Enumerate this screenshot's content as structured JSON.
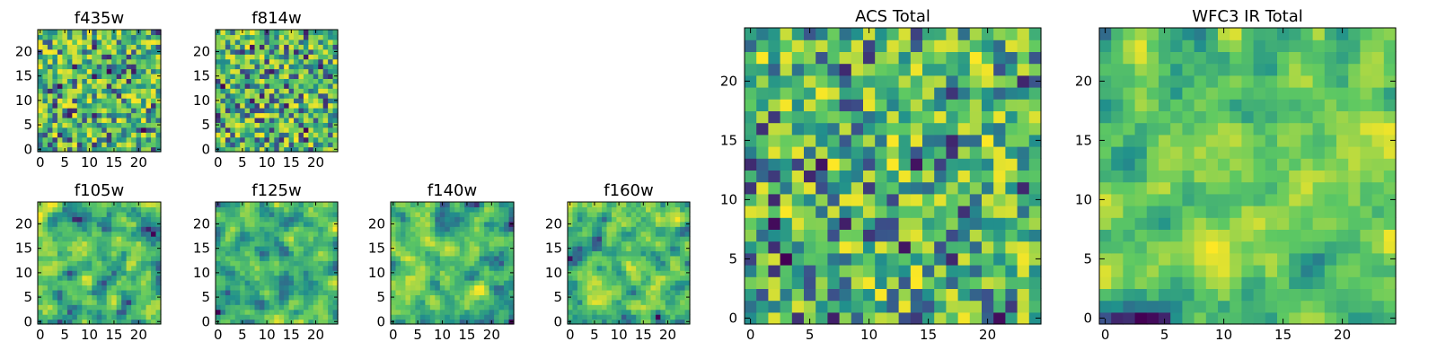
{
  "chart_data": [
    {
      "id": "f435w",
      "type": "heatmap",
      "title": "f435w",
      "grid_size": 25,
      "xlim": [
        0,
        24
      ],
      "ylim": [
        0,
        24
      ],
      "xticks": [
        0,
        5,
        10,
        15,
        20
      ],
      "yticks": [
        0,
        5,
        10,
        15,
        20
      ],
      "xtick_labels": [
        "0",
        "5",
        "10",
        "15",
        "20"
      ],
      "ytick_labels": [
        "0",
        "5",
        "10",
        "15",
        "20"
      ],
      "pattern": "fine",
      "seed": 11
    },
    {
      "id": "f814w",
      "type": "heatmap",
      "title": "f814w",
      "grid_size": 25,
      "xlim": [
        0,
        24
      ],
      "ylim": [
        0,
        24
      ],
      "xticks": [
        0,
        5,
        10,
        15,
        20
      ],
      "yticks": [
        0,
        5,
        10,
        15,
        20
      ],
      "xtick_labels": [
        "0",
        "5",
        "10",
        "15",
        "20"
      ],
      "ytick_labels": [
        "0",
        "5",
        "10",
        "15",
        "20"
      ],
      "pattern": "fine",
      "seed": 23
    },
    {
      "id": "f105w",
      "type": "heatmap",
      "title": "f105w",
      "grid_size": 25,
      "xlim": [
        0,
        24
      ],
      "ylim": [
        0,
        24
      ],
      "xticks": [
        0,
        5,
        10,
        15,
        20
      ],
      "yticks": [
        0,
        5,
        10,
        15,
        20
      ],
      "xtick_labels": [
        "0",
        "5",
        "10",
        "15",
        "20"
      ],
      "ytick_labels": [
        "0",
        "5",
        "10",
        "15",
        "20"
      ],
      "pattern": "smooth",
      "seed": 37
    },
    {
      "id": "f125w",
      "type": "heatmap",
      "title": "f125w",
      "grid_size": 25,
      "xlim": [
        0,
        24
      ],
      "ylim": [
        0,
        24
      ],
      "xticks": [
        0,
        5,
        10,
        15,
        20
      ],
      "yticks": [
        0,
        5,
        10,
        15,
        20
      ],
      "xtick_labels": [
        "0",
        "5",
        "10",
        "15",
        "20"
      ],
      "ytick_labels": [
        "0",
        "5",
        "10",
        "15",
        "20"
      ],
      "pattern": "smooth",
      "seed": 41
    },
    {
      "id": "f140w",
      "type": "heatmap",
      "title": "f140w",
      "grid_size": 25,
      "xlim": [
        0,
        24
      ],
      "ylim": [
        0,
        24
      ],
      "xticks": [
        0,
        5,
        10,
        15,
        20
      ],
      "yticks": [
        0,
        5,
        10,
        15,
        20
      ],
      "xtick_labels": [
        "0",
        "5",
        "10",
        "15",
        "20"
      ],
      "ytick_labels": [
        "0",
        "5",
        "10",
        "15",
        "20"
      ],
      "pattern": "smooth",
      "seed": 53
    },
    {
      "id": "f160w",
      "type": "heatmap",
      "title": "f160w",
      "grid_size": 25,
      "xlim": [
        0,
        24
      ],
      "ylim": [
        0,
        24
      ],
      "xticks": [
        0,
        5,
        10,
        15,
        20
      ],
      "yticks": [
        0,
        5,
        10,
        15,
        20
      ],
      "xtick_labels": [
        "0",
        "5",
        "10",
        "15",
        "20"
      ],
      "ytick_labels": [
        "0",
        "5",
        "10",
        "15",
        "20"
      ],
      "pattern": "smooth",
      "seed": 67
    },
    {
      "id": "acs-total",
      "type": "heatmap",
      "title": "ACS Total",
      "grid_size": 25,
      "xlim": [
        0,
        24
      ],
      "ylim": [
        0,
        24
      ],
      "xticks": [
        0,
        5,
        10,
        15,
        20
      ],
      "yticks": [
        0,
        5,
        10,
        15,
        20
      ],
      "xtick_labels": [
        "0",
        "5",
        "10",
        "15",
        "20"
      ],
      "ytick_labels": [
        "0",
        "5",
        "10",
        "15",
        "20"
      ],
      "pattern": "fine",
      "seed": 79
    },
    {
      "id": "wfc3-ir-total",
      "type": "heatmap",
      "title": "WFC3 IR Total",
      "grid_size": 25,
      "xlim": [
        0,
        24
      ],
      "ylim": [
        0,
        24
      ],
      "xticks": [
        0,
        5,
        10,
        15,
        20
      ],
      "yticks": [
        0,
        5,
        10,
        15,
        20
      ],
      "xtick_labels": [
        "0",
        "5",
        "10",
        "15",
        "20"
      ],
      "ytick_labels": [
        "0",
        "5",
        "10",
        "15",
        "20"
      ],
      "pattern": "smooth",
      "seed": 97
    }
  ],
  "colormap": {
    "name": "viridis",
    "stops": [
      "#440154",
      "#3b528b",
      "#21918c",
      "#5ec962",
      "#fde725"
    ],
    "value_range": [
      0,
      1
    ]
  }
}
